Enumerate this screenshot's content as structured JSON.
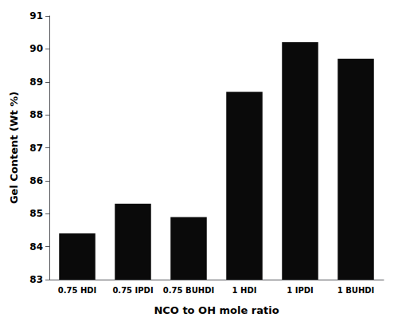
{
  "chart_data": {
    "type": "bar",
    "categories": [
      "0.75 HDI",
      "0.75 IPDI",
      "0.75 BUHDI",
      "1 HDI",
      "1 IPDI",
      "1 BUHDI"
    ],
    "values": [
      84.4,
      85.3,
      84.9,
      88.7,
      90.2,
      89.7
    ],
    "color": "#0a0a0a",
    "xlabel": "NCO to OH mole ratio",
    "ylabel": "Gel Content (Wt %)",
    "ylim": [
      83,
      91
    ],
    "yticks": [
      83,
      84,
      85,
      86,
      87,
      88,
      89,
      90,
      91
    ],
    "grid": false
  }
}
